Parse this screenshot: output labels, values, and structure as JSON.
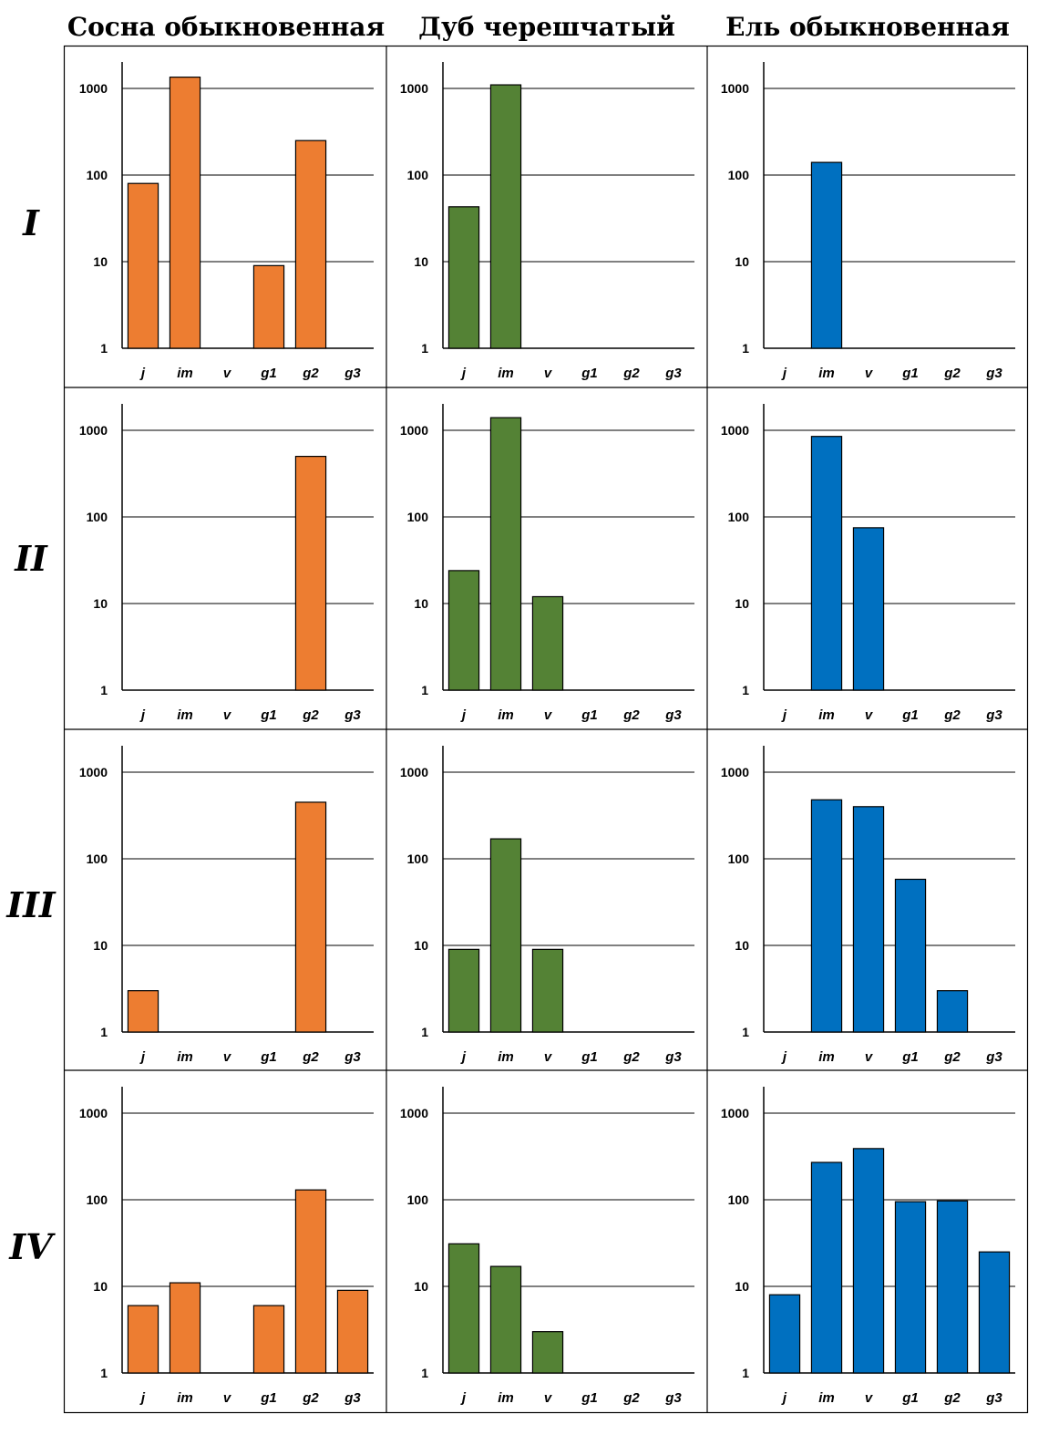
{
  "species": [
    {
      "name": "Сосна обыкновенная",
      "color": "#ED7D31"
    },
    {
      "name": "Дуб черешчатый",
      "color": "#548235"
    },
    {
      "name": "Ель обыкновенная",
      "color": "#0070C0"
    }
  ],
  "rows": [
    "I",
    "II",
    "III",
    "IV"
  ],
  "chart_data": {
    "type": "bar",
    "yscale": "log",
    "ylim": [
      1,
      1000
    ],
    "yticks": [
      "1",
      "10",
      "100",
      "1000"
    ],
    "categories": [
      "j",
      "im",
      "v",
      "g1",
      "g2",
      "g3"
    ],
    "grid": "horizontal",
    "panels": [
      [
        {
          "values": [
            80,
            1350,
            0,
            9,
            250,
            0
          ]
        },
        {
          "values": [
            43,
            1100,
            0,
            0,
            0,
            0
          ]
        },
        {
          "values": [
            0,
            140,
            0,
            0,
            0,
            0
          ]
        }
      ],
      [
        {
          "values": [
            0,
            0,
            0,
            0,
            500,
            0
          ]
        },
        {
          "values": [
            24,
            1400,
            12,
            0,
            0,
            0
          ]
        },
        {
          "values": [
            0,
            850,
            75,
            0,
            0,
            0
          ]
        }
      ],
      [
        {
          "values": [
            3,
            0,
            0,
            0,
            450,
            0
          ]
        },
        {
          "values": [
            9,
            170,
            9,
            0,
            0,
            0
          ]
        },
        {
          "values": [
            0,
            480,
            400,
            58,
            3,
            0
          ]
        }
      ],
      [
        {
          "values": [
            6,
            11,
            0,
            6,
            130,
            9
          ]
        },
        {
          "values": [
            31,
            17,
            3,
            0,
            0,
            0
          ]
        },
        {
          "values": [
            8,
            270,
            390,
            95,
            97,
            25
          ]
        }
      ]
    ]
  }
}
